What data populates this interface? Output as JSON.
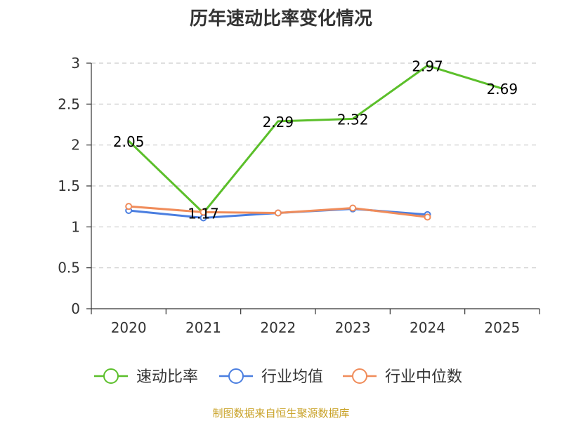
{
  "title": "历年速动比率变化情况",
  "source_note": "制图数据来自恒生聚源数据库",
  "colors": {
    "series_company": "#5bbf2a",
    "series_avg": "#4a7ee0",
    "series_median": "#f08c5a",
    "grid": "#cccccc",
    "axis": "#333333"
  },
  "chart_data": {
    "type": "line",
    "title": "历年速动比率变化情况",
    "xlabel": "",
    "ylabel": "",
    "categories": [
      "2020",
      "2021",
      "2022",
      "2023",
      "2024",
      "2025"
    ],
    "ylim": [
      0,
      3
    ],
    "yticks": [
      0,
      0.5,
      1,
      1.5,
      2,
      2.5,
      3
    ],
    "ytick_labels": [
      "0",
      "0.5",
      "1",
      "1.5",
      "2",
      "2.5",
      "3"
    ],
    "grid": true,
    "legend_position": "bottom",
    "series": [
      {
        "name": "速动比率",
        "color": "#5bbf2a",
        "values": [
          2.05,
          1.17,
          2.29,
          2.32,
          2.97,
          2.69
        ],
        "labels": [
          "2.05",
          "1.17",
          "2.29",
          "2.32",
          "2.97",
          "2.69"
        ],
        "show_markers": false,
        "show_labels": true
      },
      {
        "name": "行业均值",
        "color": "#4a7ee0",
        "values": [
          1.2,
          1.11,
          1.17,
          1.22,
          1.15,
          null
        ],
        "show_markers": true,
        "show_labels": false
      },
      {
        "name": "行业中位数",
        "color": "#f08c5a",
        "values": [
          1.25,
          1.18,
          1.17,
          1.23,
          1.12,
          null
        ],
        "show_markers": true,
        "show_labels": false
      }
    ]
  }
}
